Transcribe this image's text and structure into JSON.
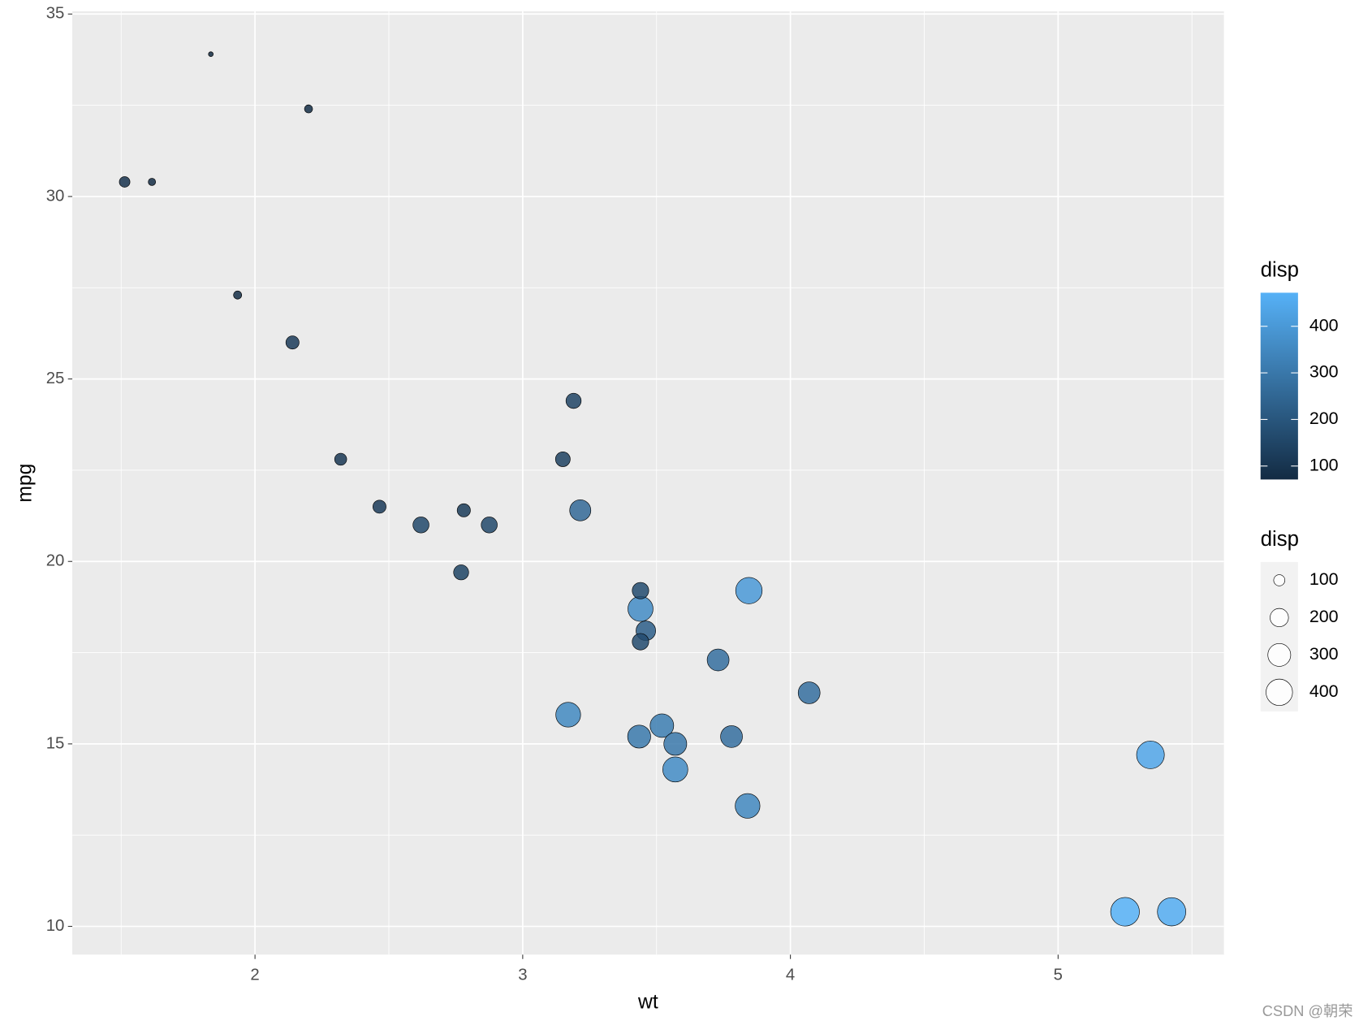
{
  "chart_data": {
    "type": "scatter",
    "x_label": "wt",
    "y_label": "mpg",
    "x": [
      2.62,
      2.875,
      2.32,
      3.215,
      3.44,
      3.46,
      3.57,
      3.19,
      3.15,
      3.44,
      3.44,
      4.07,
      3.73,
      3.78,
      5.25,
      5.424,
      5.345,
      2.2,
      1.615,
      1.835,
      2.465,
      3.52,
      3.435,
      3.84,
      3.845,
      1.935,
      2.14,
      1.513,
      3.17,
      2.77,
      3.57,
      2.78
    ],
    "y": [
      21.0,
      21.0,
      22.8,
      21.4,
      18.7,
      18.1,
      14.3,
      24.4,
      22.8,
      19.2,
      17.8,
      16.4,
      17.3,
      15.2,
      10.4,
      10.4,
      14.7,
      32.4,
      30.4,
      33.9,
      21.5,
      15.5,
      15.2,
      13.3,
      19.2,
      27.3,
      26.0,
      30.4,
      15.8,
      19.7,
      15.0,
      21.4
    ],
    "size": [
      160,
      160,
      108,
      258,
      360,
      225,
      360,
      146.7,
      140.8,
      167.6,
      167.6,
      275.8,
      275.8,
      275.8,
      472,
      460,
      440,
      78.7,
      75.7,
      71.1,
      120.1,
      318,
      304,
      350,
      400,
      79,
      120.3,
      95.1,
      351,
      145,
      301,
      121
    ],
    "xlim": [
      1.3175,
      5.6196
    ],
    "ylim": [
      9.225,
      35.075
    ],
    "xticks": [
      2,
      3,
      4,
      5
    ],
    "yticks": [
      10,
      15,
      20,
      25,
      30,
      35
    ],
    "x_minor_grid": [
      1.5,
      2.5,
      3.5,
      4.5,
      5.5
    ],
    "y_minor_grid": [
      12.5,
      17.5,
      22.5,
      27.5,
      32.5
    ],
    "grid": true,
    "legend": {
      "color": {
        "title": "disp",
        "ticks": [
          100,
          200,
          300,
          400
        ],
        "low": "#132B43",
        "high": "#56B1F7"
      },
      "size": {
        "title": "disp",
        "breaks": [
          100,
          200,
          300,
          400
        ]
      }
    },
    "watermark": "CSDN @朝荣"
  }
}
